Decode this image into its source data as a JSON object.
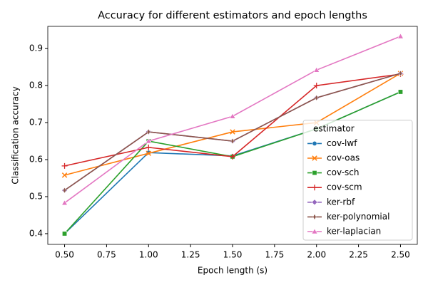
{
  "chart_data": {
    "type": "line",
    "title": "Accuracy for different estimators and epoch lengths",
    "x_label": "Epoch length (s)",
    "y_label": "Classification accuracy",
    "x": [
      0.5,
      1.0,
      1.5,
      2.0,
      2.5
    ],
    "xlim": [
      0.4,
      2.6
    ],
    "ylim": [
      0.371,
      0.96
    ],
    "xticks": [
      {
        "value": 0.5,
        "label": "0.50"
      },
      {
        "value": 0.75,
        "label": "0.75"
      },
      {
        "value": 1.0,
        "label": "1.00"
      },
      {
        "value": 1.25,
        "label": "1.25"
      },
      {
        "value": 1.5,
        "label": "1.50"
      },
      {
        "value": 1.75,
        "label": "1.75"
      },
      {
        "value": 2.0,
        "label": "2.00"
      },
      {
        "value": 2.25,
        "label": "2.25"
      },
      {
        "value": 2.5,
        "label": "2.50"
      }
    ],
    "yticks": [
      0.4,
      0.5,
      0.6,
      0.7,
      0.8,
      0.9
    ],
    "legend_title": "estimator",
    "legend_position": "lower right",
    "series": [
      {
        "name": "cov-lwf",
        "color": "#1f77b4",
        "marker": "circle",
        "values": [
          0.4,
          0.619,
          0.61,
          0.683,
          0.783
        ]
      },
      {
        "name": "cov-oas",
        "color": "#ff7f0e",
        "marker": "x",
        "values": [
          0.558,
          0.617,
          0.675,
          0.7,
          0.833
        ]
      },
      {
        "name": "cov-sch",
        "color": "#2ca02c",
        "marker": "square",
        "values": [
          0.4,
          0.65,
          0.608,
          0.683,
          0.783
        ]
      },
      {
        "name": "cov-scm",
        "color": "#d62728",
        "marker": "plus",
        "values": [
          0.583,
          0.633,
          0.608,
          0.8,
          0.831
        ]
      },
      {
        "name": "ker-rbf",
        "color": "#9467bd",
        "marker": "diamond",
        "values": [
          0.517,
          0.675,
          0.65,
          0.767,
          0.833
        ]
      },
      {
        "name": "ker-polynomial",
        "color": "#8c564b",
        "marker": "thin-diamond",
        "values": [
          0.517,
          0.675,
          0.65,
          0.767,
          0.833
        ]
      },
      {
        "name": "ker-laplacian",
        "color": "#e377c2",
        "marker": "triangle",
        "values": [
          0.483,
          0.65,
          0.717,
          0.842,
          0.933
        ]
      }
    ]
  }
}
